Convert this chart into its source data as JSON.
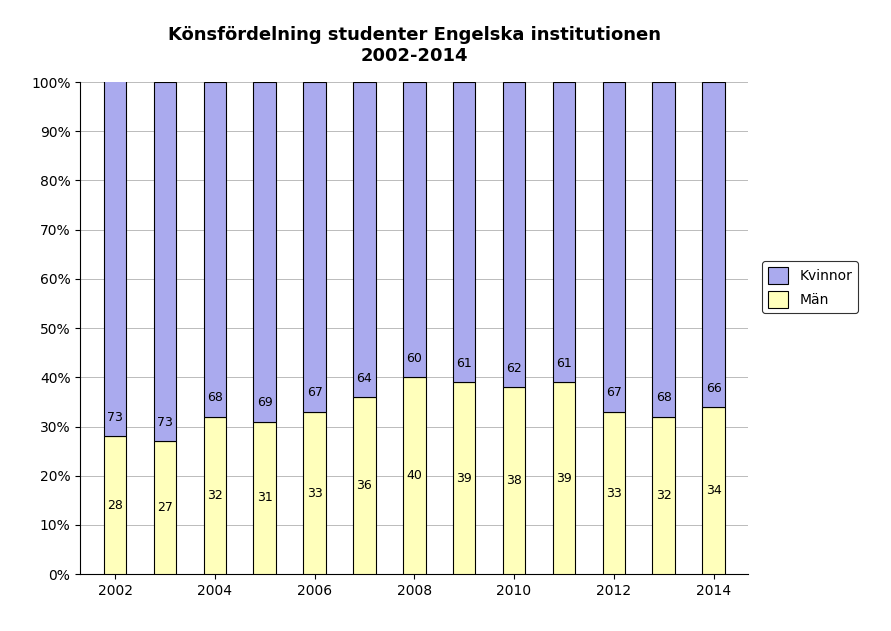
{
  "title": "Könsfördelning studenter Engelska institutionen\n2002-2014",
  "years": [
    2002,
    2003,
    2004,
    2005,
    2006,
    2007,
    2008,
    2009,
    2010,
    2011,
    2012,
    2013,
    2014
  ],
  "man_values": [
    28,
    27,
    32,
    31,
    33,
    36,
    40,
    39,
    38,
    39,
    33,
    32,
    34
  ],
  "kvinnor_values": [
    73,
    73,
    68,
    69,
    67,
    64,
    60,
    61,
    62,
    61,
    67,
    68,
    66
  ],
  "man_color": "#ffffbb",
  "kvinnor_color": "#aaaaee",
  "bar_width": 0.45,
  "legend_labels": [
    "Kvinnor",
    "Män"
  ],
  "title_fontsize": 13,
  "tick_fontsize": 10,
  "label_fontsize": 9,
  "background_color": "#ffffff",
  "grid_color": "#bbbbbb",
  "xtick_years": [
    2002,
    2004,
    2006,
    2008,
    2010,
    2012,
    2014
  ],
  "xlim_left": 2001.3,
  "xlim_right": 2014.7
}
